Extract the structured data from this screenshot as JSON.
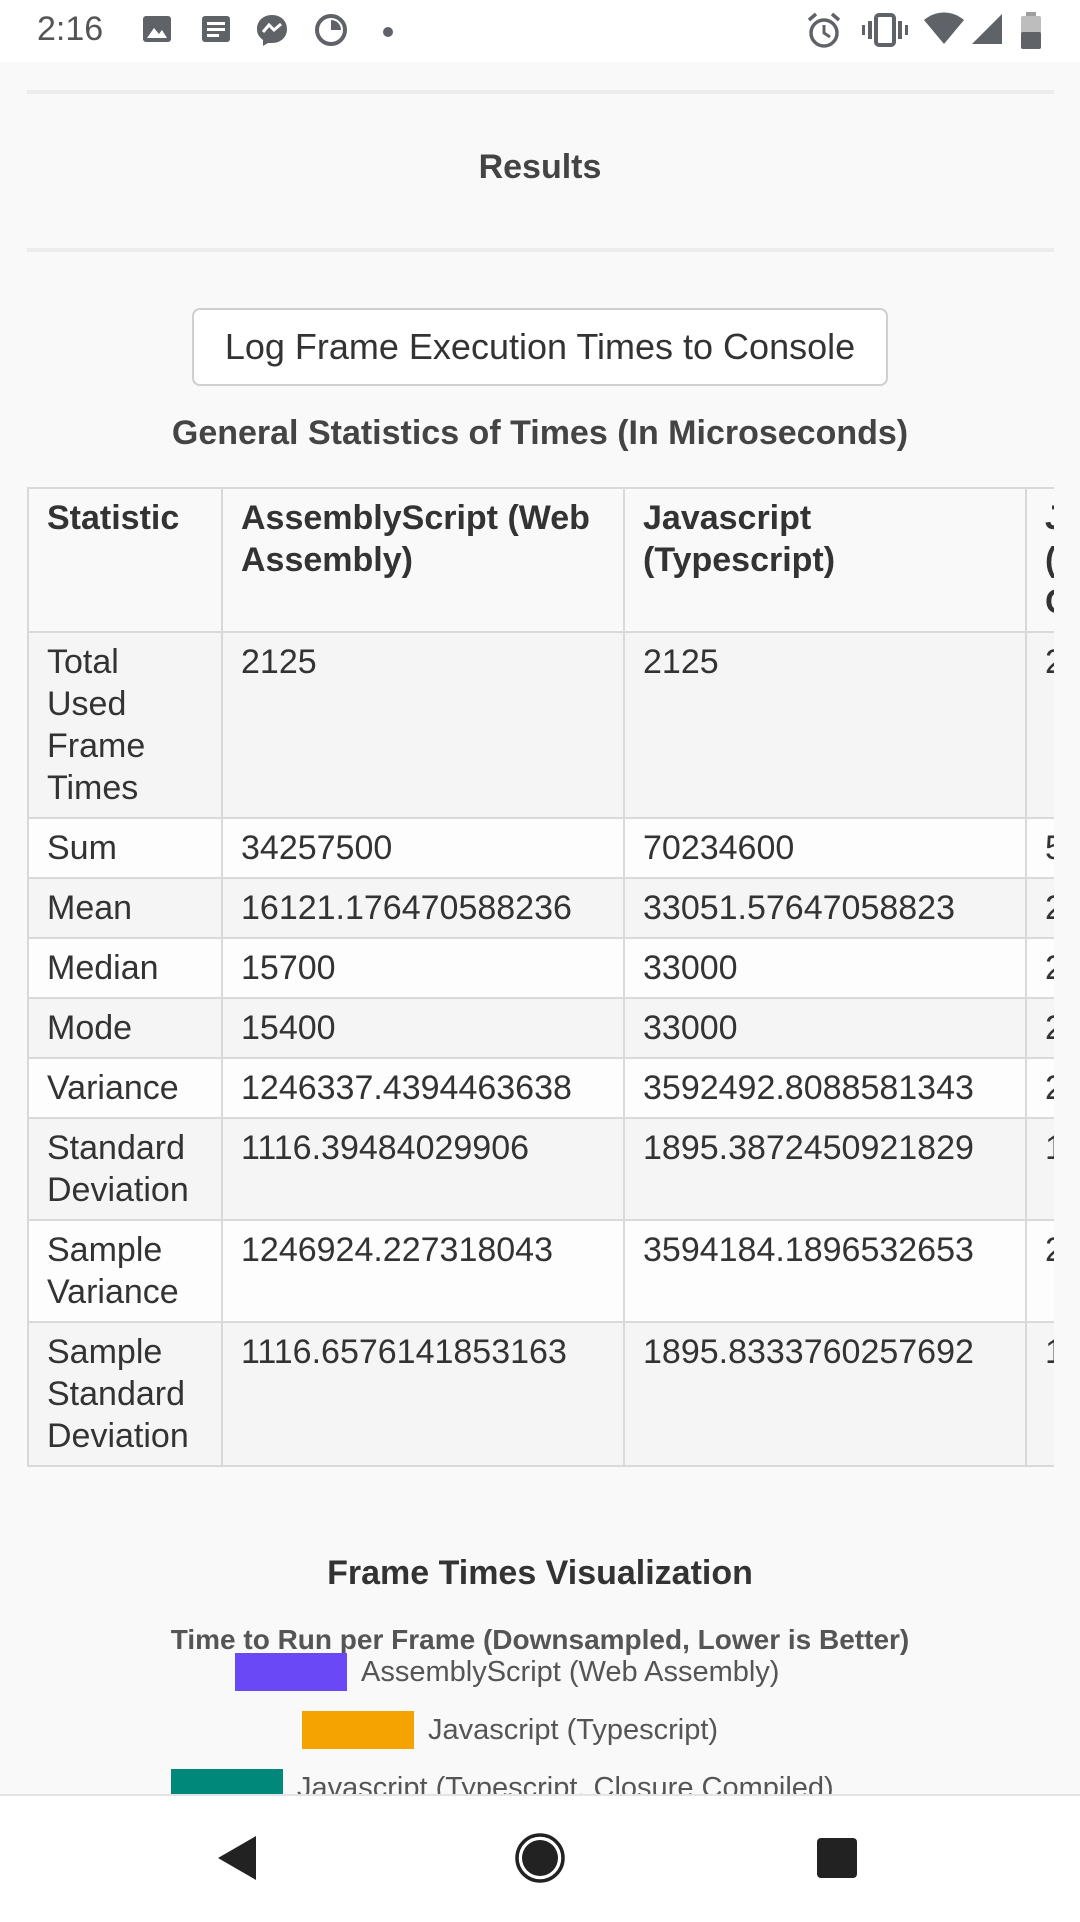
{
  "status_bar": {
    "time": "2:16",
    "left_icons": [
      "image-icon",
      "news-icon",
      "messenger-icon",
      "data-saver-icon",
      "dot-icon"
    ],
    "right_icons": [
      "alarm-icon",
      "vibrate-icon",
      "wifi-icon",
      "signal-icon",
      "battery-icon"
    ]
  },
  "page": {
    "results_title": "Results",
    "log_button_label": "Log Frame Execution Times to Console",
    "stats_title": "General Statistics of Times (In Microseconds)",
    "table": {
      "headers": [
        "Statistic",
        "AssemblyScript (Web Assembly)",
        "Javascript (Typescript)",
        "J\n(\nC"
      ],
      "rows": [
        [
          "Total Used Frame Times",
          "2125",
          "2125",
          "2"
        ],
        [
          "Sum",
          "34257500",
          "70234600",
          "5"
        ],
        [
          "Mean",
          "16121.176470588236",
          "33051.57647058823",
          "2"
        ],
        [
          "Median",
          "15700",
          "33000",
          "2"
        ],
        [
          "Mode",
          "15400",
          "33000",
          "2"
        ],
        [
          "Variance",
          "1246337.4394463638",
          "3592492.8088581343",
          "2"
        ],
        [
          "Standard Deviation",
          "1116.39484029906",
          "1895.3872450921829",
          "1"
        ],
        [
          "Sample Variance",
          "1246924.227318043",
          "3594184.1896532653",
          "2"
        ],
        [
          "Sample Standard Deviation",
          "1116.6576141853163",
          "1895.8333760257692",
          "1"
        ]
      ]
    },
    "viz_title": "Frame Times Visualization",
    "chart_title": "Time to Run per Frame (Downsampled, Lower is Better)",
    "legend": [
      {
        "label": "AssemblyScript (Web Assembly)",
        "color": "#6a48f5"
      },
      {
        "label": "Javascript (Typescript)",
        "color": "#f5a300"
      },
      {
        "label": "Javascript (Typescript, Closure Compiled)",
        "color": "#00897b"
      }
    ]
  },
  "nav_bar": {
    "buttons": [
      "back-button",
      "home-button",
      "recents-button"
    ]
  }
}
